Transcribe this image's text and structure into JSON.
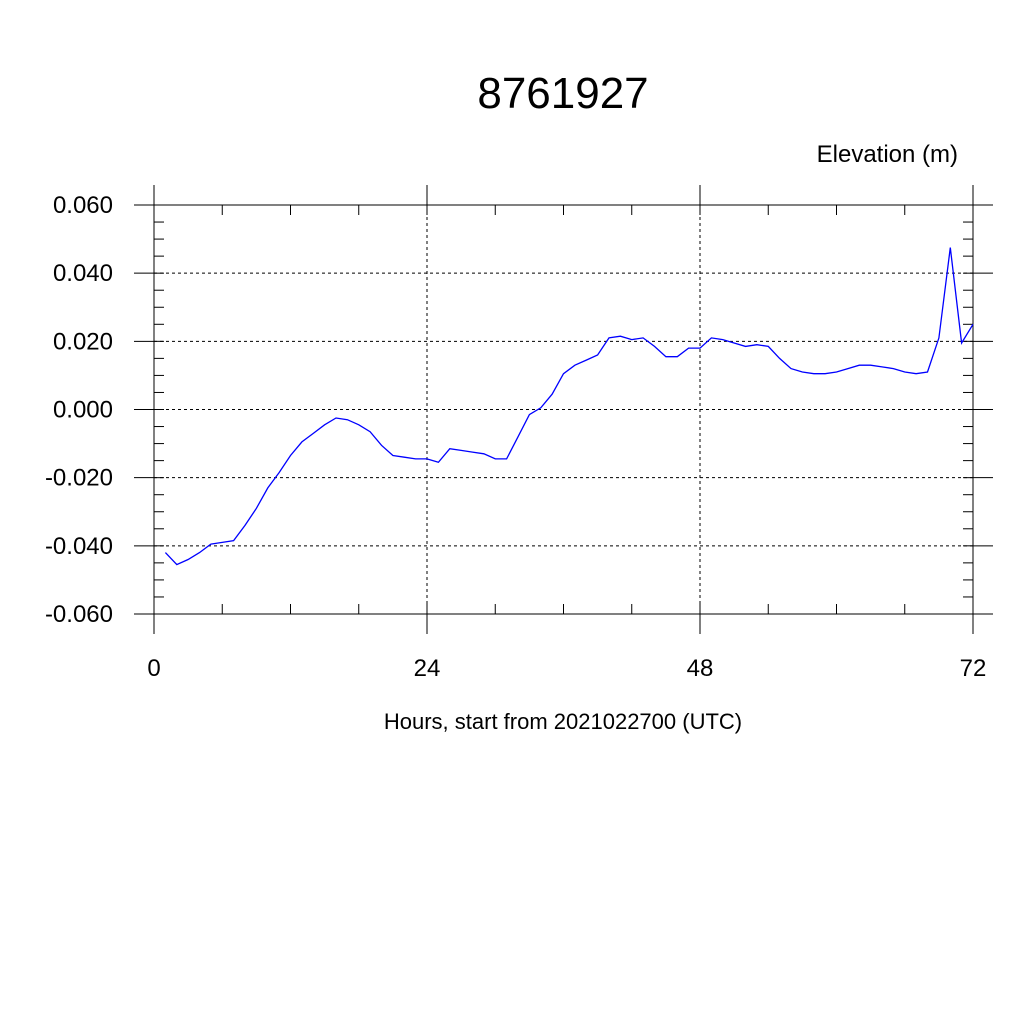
{
  "chart_data": {
    "type": "line",
    "title": "8761927",
    "ylabel": "Elevation (m)",
    "xlabel": "Hours, start from 2021022700 (UTC)",
    "xlim": [
      0,
      72
    ],
    "ylim": [
      -0.06,
      0.06
    ],
    "xticks": [
      0,
      24,
      48,
      72
    ],
    "xtick_labels": [
      "0",
      "24",
      "48",
      "72"
    ],
    "yticks": [
      -0.06,
      -0.04,
      -0.02,
      0.0,
      0.02,
      0.04,
      0.06
    ],
    "ytick_labels": [
      "-0.060",
      "-0.040",
      "-0.020",
      "0.000",
      "0.020",
      "0.040",
      "0.060"
    ],
    "grid": true,
    "series": [
      {
        "color": "#0000ff",
        "x": [
          1,
          2,
          3,
          4,
          5,
          6,
          7,
          8,
          9,
          10,
          11,
          12,
          13,
          14,
          15,
          16,
          17,
          18,
          19,
          20,
          21,
          22,
          23,
          24,
          25,
          26,
          27,
          28,
          29,
          30,
          31,
          32,
          33,
          34,
          35,
          36,
          37,
          38,
          39,
          40,
          41,
          42,
          43,
          44,
          45,
          46,
          47,
          48,
          49,
          50,
          51,
          52,
          53,
          54,
          55,
          56,
          57,
          58,
          59,
          60,
          61,
          62,
          63,
          64,
          65,
          66,
          67,
          68,
          69,
          70,
          71,
          72
        ],
        "y": [
          -0.042,
          -0.0455,
          -0.044,
          -0.042,
          -0.0395,
          -0.039,
          -0.0385,
          -0.034,
          -0.029,
          -0.023,
          -0.0185,
          -0.0135,
          -0.0095,
          -0.007,
          -0.0045,
          -0.0025,
          -0.003,
          -0.0045,
          -0.0065,
          -0.0105,
          -0.0135,
          -0.014,
          -0.0145,
          -0.0145,
          -0.0155,
          -0.0115,
          -0.012,
          -0.0125,
          -0.013,
          -0.0145,
          -0.0145,
          -0.008,
          -0.0015,
          0.0005,
          0.0045,
          0.0105,
          0.013,
          0.0145,
          0.016,
          0.021,
          0.0215,
          0.0205,
          0.021,
          0.0185,
          0.0155,
          0.0155,
          0.018,
          0.018,
          0.021,
          0.0205,
          0.0195,
          0.0185,
          0.019,
          0.0185,
          0.015,
          0.012,
          0.011,
          0.0105,
          0.0105,
          0.011,
          0.012,
          0.013,
          0.013,
          0.0125,
          0.012,
          0.011,
          0.0105,
          0.011,
          0.021,
          0.0475,
          0.0195,
          0.025
        ]
      }
    ]
  }
}
